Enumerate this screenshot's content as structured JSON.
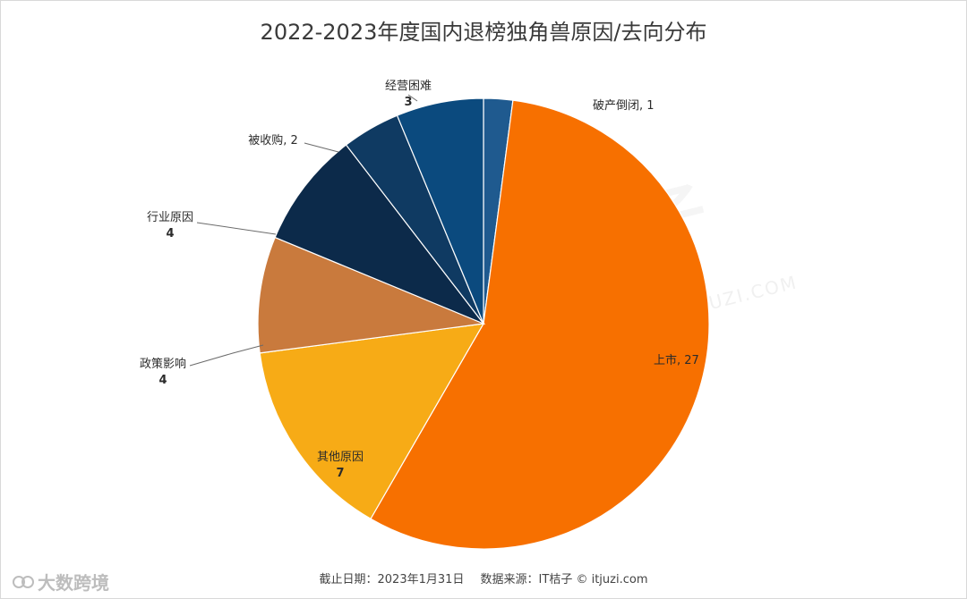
{
  "chart_data": {
    "type": "pie",
    "title": "2022-2023年度国内退榜独角兽原因/去向分布",
    "slices": [
      {
        "label": "破产倒闭",
        "value": 1,
        "color": "#1f5a8f"
      },
      {
        "label": "上市",
        "value": 27,
        "color": "#f77000"
      },
      {
        "label": "其他原因",
        "value": 7,
        "color": "#f7ab16"
      },
      {
        "label": "政策影响",
        "value": 4,
        "color": "#c97a3d"
      },
      {
        "label": "行业原因",
        "value": 4,
        "color": "#0c2a4a"
      },
      {
        "label": "被收购",
        "value": 2,
        "color": "#0f3a62"
      },
      {
        "label": "经营困难",
        "value": 3,
        "color": "#0b4a7e"
      }
    ],
    "data_labels": [
      {
        "name": "破产倒闭",
        "value": "1",
        "layout": "inline",
        "separator": ", "
      },
      {
        "name": "上市",
        "value": "27",
        "layout": "inline",
        "separator": ", "
      },
      {
        "name": "其他原因",
        "value": "7",
        "layout": "stacked"
      },
      {
        "name": "政策影响",
        "value": "4",
        "layout": "stacked"
      },
      {
        "name": "行业原因",
        "value": "4",
        "layout": "stacked"
      },
      {
        "name": "被收购",
        "value": "2",
        "layout": "inline",
        "separator": ", "
      },
      {
        "name": "经营困难",
        "value": "3",
        "layout": "stacked"
      }
    ],
    "legend": "none"
  },
  "footer": {
    "date_text": "截止日期：2023年1月31日",
    "source_text": "数据来源：IT桔子 © itjuzi.com"
  },
  "watermark": {
    "corner_text": "大数跨境",
    "background_text": "IT桔子",
    "background_sub": "ITJUZI.COM"
  },
  "colors": {
    "leader_line": "#6b6b6b",
    "slice_border": "#ffffff",
    "label_text": "#2b2b2b"
  }
}
